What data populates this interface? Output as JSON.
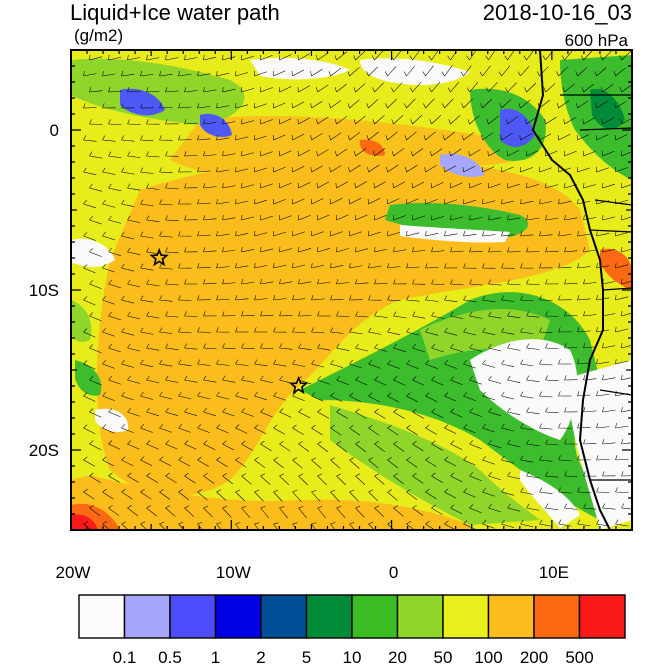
{
  "header": {
    "title": "Liquid+Ice water path",
    "units": "(g/m2)",
    "datetime": "2018-10-16_03",
    "level": "600 hPa"
  },
  "map": {
    "lat_range": [
      -25,
      5
    ],
    "lon_range": [
      -20,
      15
    ],
    "y_tick_labels": [
      {
        "lat": 0,
        "label": "0"
      },
      {
        "lat": -10,
        "label": "10S"
      },
      {
        "lat": -20,
        "label": "20S"
      }
    ],
    "x_tick_labels": [
      {
        "lon": -20,
        "label": "20W"
      },
      {
        "lon": -10,
        "label": "10W"
      },
      {
        "lon": 0,
        "label": "0"
      },
      {
        "lon": 10,
        "label": "10E"
      }
    ],
    "markers": [
      {
        "type": "star",
        "lon": -14.5,
        "lat": -8.0
      },
      {
        "type": "star",
        "lon": -5.8,
        "lat": -16.0
      }
    ],
    "fill_colors": {
      "background": "#e7ec1a",
      "orange": "#fbbd1c",
      "green": "#3dbd2e",
      "light_green": "#8fd52a",
      "white": "#fafafa",
      "blue": "#4e58f5",
      "red_orange": "#fb6a12"
    }
  },
  "colorbar": {
    "labels": [
      "0.1",
      "0.5",
      "1",
      "2",
      "5",
      "10",
      "20",
      "50",
      "100",
      "200",
      "500"
    ],
    "colors": [
      "#fcfcfc",
      "#a6a6fb",
      "#4d4dfb",
      "#0000e4",
      "#004f96",
      "#008b3a",
      "#39bd22",
      "#8fd52a",
      "#e9ef1a",
      "#fbbd1c",
      "#fb6a12",
      "#fb1a1a"
    ]
  }
}
